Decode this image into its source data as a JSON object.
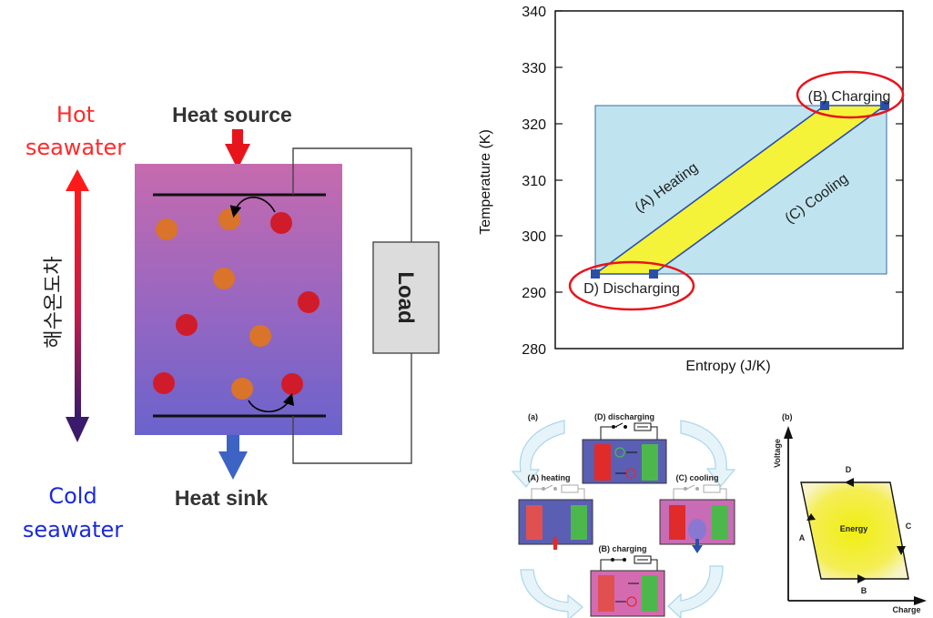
{
  "left_diagram": {
    "hot_label_line1": "Hot",
    "hot_label_line2": "seawater",
    "cold_label_line1": "Cold",
    "cold_label_line2": "seawater",
    "vertical_label": "해수온도차",
    "heat_source": "Heat source",
    "heat_sink": "Heat sink",
    "load": "Load",
    "colors": {
      "hot": "#ff2a2a",
      "cold": "#1c2bd6",
      "cell_top": "#c46ab0",
      "cell_bottom": "#6a62c8"
    }
  },
  "ts_chart": {
    "ylabel": "Temperature (K)",
    "xlabel": "Entropy (J/K)",
    "yticks": [
      "340",
      "330",
      "320",
      "310",
      "300",
      "290",
      "280"
    ],
    "label_heating": "(A) Heating",
    "label_cooling": "(C) Cooling",
    "label_charging": "(B) Charging",
    "label_discharging": "D) Discharging",
    "colors": {
      "box": "#bfe4f0",
      "cycle": "#f5f23a",
      "highlight": "#e8141c",
      "point": "#2b4fa8"
    }
  },
  "cycle_diagram": {
    "panel_label": "(a)",
    "discharging": "(D) discharging",
    "heating": "(A) heating",
    "cooling": "(C) cooling",
    "charging": "(B) charging"
  },
  "vq_diagram": {
    "panel_label": "(b)",
    "ylabel": "Voltage",
    "xlabel": "Charge",
    "energy": "Energy",
    "a": "A",
    "b": "B",
    "c": "C",
    "d": "D"
  },
  "chart_data": {
    "type": "line",
    "xlabel": "Entropy (J/K)",
    "ylabel": "Temperature (K)",
    "ylim": [
      280,
      340
    ],
    "yticks": [
      280,
      290,
      300,
      310,
      320,
      330,
      340
    ],
    "series": [
      {
        "name": "(A) Heating",
        "temperature": [
          293,
          323
        ]
      },
      {
        "name": "(B) Charging",
        "temperature": [
          323,
          323
        ]
      },
      {
        "name": "(C) Cooling",
        "temperature": [
          323,
          293
        ]
      },
      {
        "name": "D) Discharging",
        "temperature": [
          293,
          293
        ]
      }
    ],
    "grid": false
  }
}
